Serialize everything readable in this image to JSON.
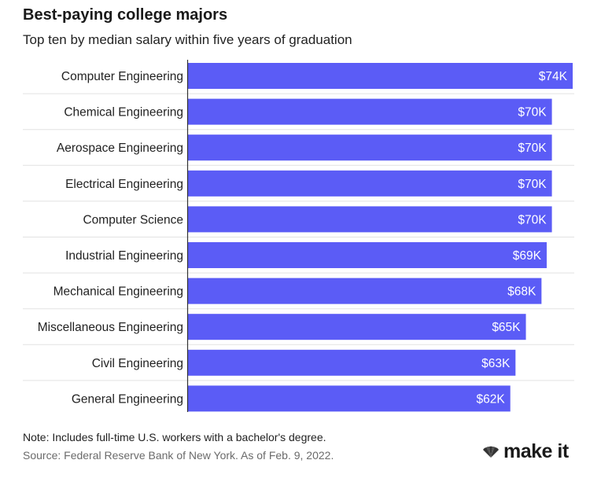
{
  "header": {
    "title": "Best-paying college majors",
    "subtitle": "Top ten by median salary within five years of graduation"
  },
  "chart_data": {
    "type": "bar",
    "orientation": "horizontal",
    "title": "Best-paying college majors",
    "subtitle": "Top ten by median salary within five years of graduation",
    "categories": [
      "Computer Engineering",
      "Chemical Engineering",
      "Aerospace Engineering",
      "Electrical Engineering",
      "Computer Science",
      "Industrial Engineering",
      "Mechanical Engineering",
      "Miscellaneous Engineering",
      "Civil Engineering",
      "General Engineering"
    ],
    "values": [
      74,
      70,
      70,
      70,
      70,
      69,
      68,
      65,
      63,
      62
    ],
    "labels": [
      "$74K",
      "$70K",
      "$70K",
      "$70K",
      "$70K",
      "$69K",
      "$68K",
      "$65K",
      "$63K",
      "$62K"
    ],
    "xlim": [
      0,
      74
    ],
    "grid": false,
    "bar_color": "#5b5cf6"
  },
  "footer": {
    "note": "Note: Includes full-time U.S. workers with a bachelor's degree.",
    "source": "Source: Federal Reserve Bank of New York. As of Feb. 9, 2022."
  },
  "logo": {
    "text": "make it",
    "icon": "nbc-peacock-icon"
  }
}
